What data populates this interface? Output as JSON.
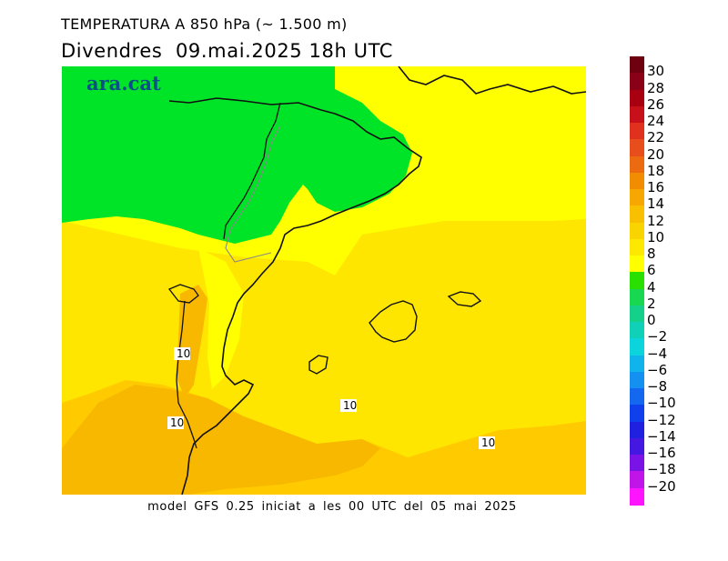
{
  "header": {
    "title": "TEMPERATURA A 850 hPa (~ 1.500 m)",
    "subtitle": "Divendres  09.mai.2025 18h UTC"
  },
  "map": {
    "brand_text": "ara.cat",
    "contour_labels": [
      "10",
      "10",
      "10",
      "10"
    ]
  },
  "footer": {
    "text": "model GFS 0.25 iniciat a les 00 UTC del 05 mai 2025"
  },
  "legend": {
    "labels": [
      "30",
      "28",
      "26",
      "24",
      "22",
      "20",
      "18",
      "16",
      "14",
      "12",
      "10",
      "8",
      "6",
      "4",
      "2",
      "0",
      "−2",
      "−4",
      "−6",
      "−8",
      "−10",
      "−12",
      "−14",
      "−16",
      "−18",
      "−20"
    ],
    "colors": [
      "#6e0010",
      "#8a0016",
      "#a80010",
      "#c8101a",
      "#e0301e",
      "#e84e1c",
      "#ec6a10",
      "#f28c00",
      "#f6a800",
      "#f8c000",
      "#fad400",
      "#fce800",
      "#ffff00",
      "#2ae000",
      "#18d852",
      "#14d08a",
      "#10d0b8",
      "#0cd4dc",
      "#10b4ec",
      "#1490f0",
      "#1468f0",
      "#1040ec",
      "#2020e0",
      "#4418e0",
      "#7a14e6",
      "#c014e8",
      "#ff14ff"
    ]
  },
  "colors": {
    "green": "#00e428",
    "yellow": "#ffff00",
    "light_orange": "#ffe600",
    "orange": "#ffcb00",
    "dark_orange": "#f9b800",
    "coast": "#000000",
    "border": "#aaaaaa"
  }
}
